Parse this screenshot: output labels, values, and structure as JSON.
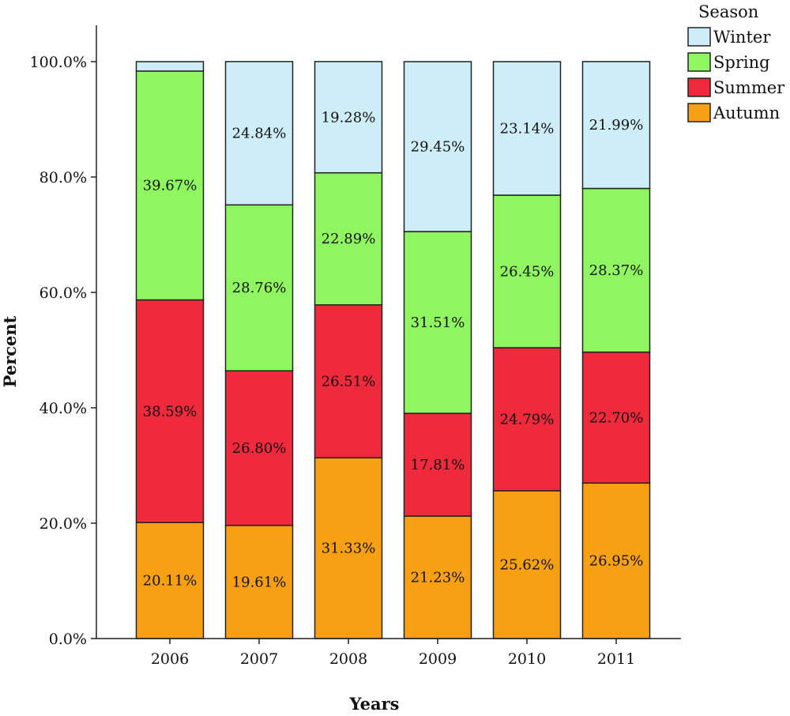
{
  "chart_data": {
    "type": "bar",
    "stacked": true,
    "categories": [
      "2006",
      "2007",
      "2008",
      "2009",
      "2010",
      "2011"
    ],
    "series": [
      {
        "name": "Autumn",
        "color": "#f7a014",
        "values": [
          20.11,
          19.61,
          31.33,
          21.23,
          25.62,
          26.95
        ],
        "labels": [
          "20.11%",
          "19.61%",
          "31.33%",
          "21.23%",
          "25.62%",
          "26.95%"
        ]
      },
      {
        "name": "Summer",
        "color": "#ee2a3c",
        "values": [
          38.59,
          26.8,
          26.51,
          17.81,
          24.79,
          22.7
        ],
        "labels": [
          "38.59%",
          "26.80%",
          "26.51%",
          "17.81%",
          "24.79%",
          "22.70%"
        ]
      },
      {
        "name": "Spring",
        "color": "#8ff560",
        "values": [
          39.67,
          28.76,
          22.89,
          31.51,
          26.45,
          28.37
        ],
        "labels": [
          "39.67%",
          "28.76%",
          "22.89%",
          "31.51%",
          "26.45%",
          "28.37%"
        ]
      },
      {
        "name": "Winter",
        "color": "#cdeef8",
        "values": [
          1.63,
          24.84,
          19.28,
          29.45,
          23.14,
          21.99
        ],
        "labels": [
          "",
          "24.84%",
          "19.28%",
          "29.45%",
          "23.14%",
          "21.99%"
        ]
      }
    ],
    "xlabel": "Years",
    "ylabel": "Percent",
    "ylim": [
      0,
      100
    ],
    "yticks": [
      0,
      20,
      40,
      60,
      80,
      100
    ],
    "ytick_labels": [
      "0.0%",
      "20.0%",
      "40.0%",
      "60.0%",
      "80.0%",
      "100.0%"
    ],
    "grid": false,
    "legend": {
      "title": "Season",
      "position": "top-right",
      "order": [
        "Winter",
        "Spring",
        "Summer",
        "Autumn"
      ]
    }
  }
}
